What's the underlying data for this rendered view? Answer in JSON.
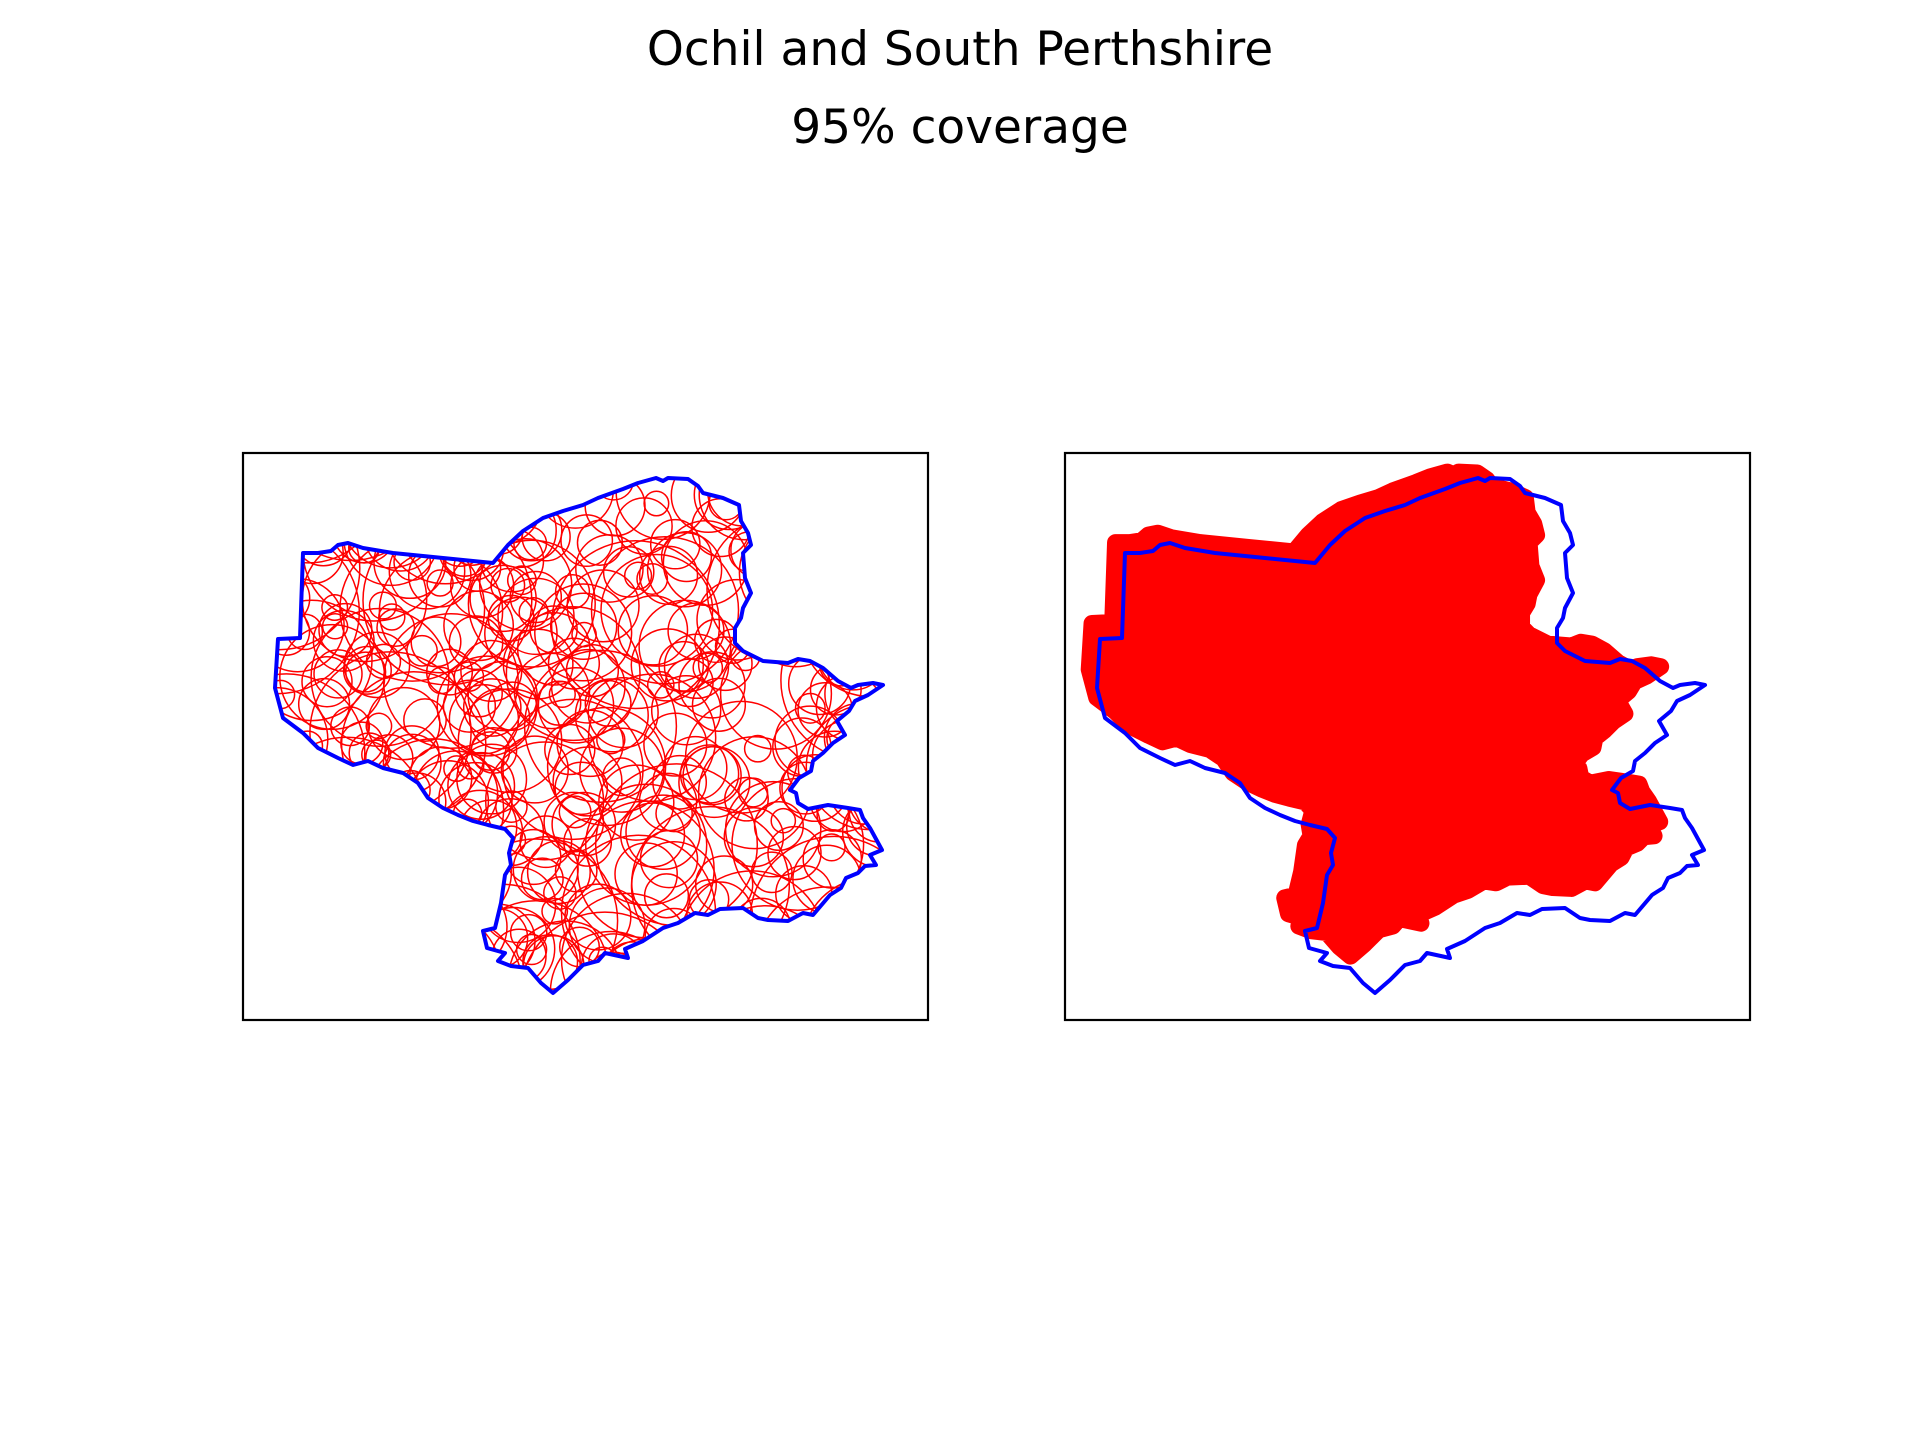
{
  "figure": {
    "title": "Ochil and South Perthshire",
    "subtitle": "95% coverage"
  },
  "colors": {
    "boundary": "#0000ff",
    "coverage": "#ff0000",
    "axes_frame": "#000000",
    "background": "#ffffff"
  },
  "panels": [
    {
      "view": "circle-outlines",
      "ticks": "none"
    },
    {
      "view": "filled-coverage",
      "ticks": "none"
    }
  ]
}
